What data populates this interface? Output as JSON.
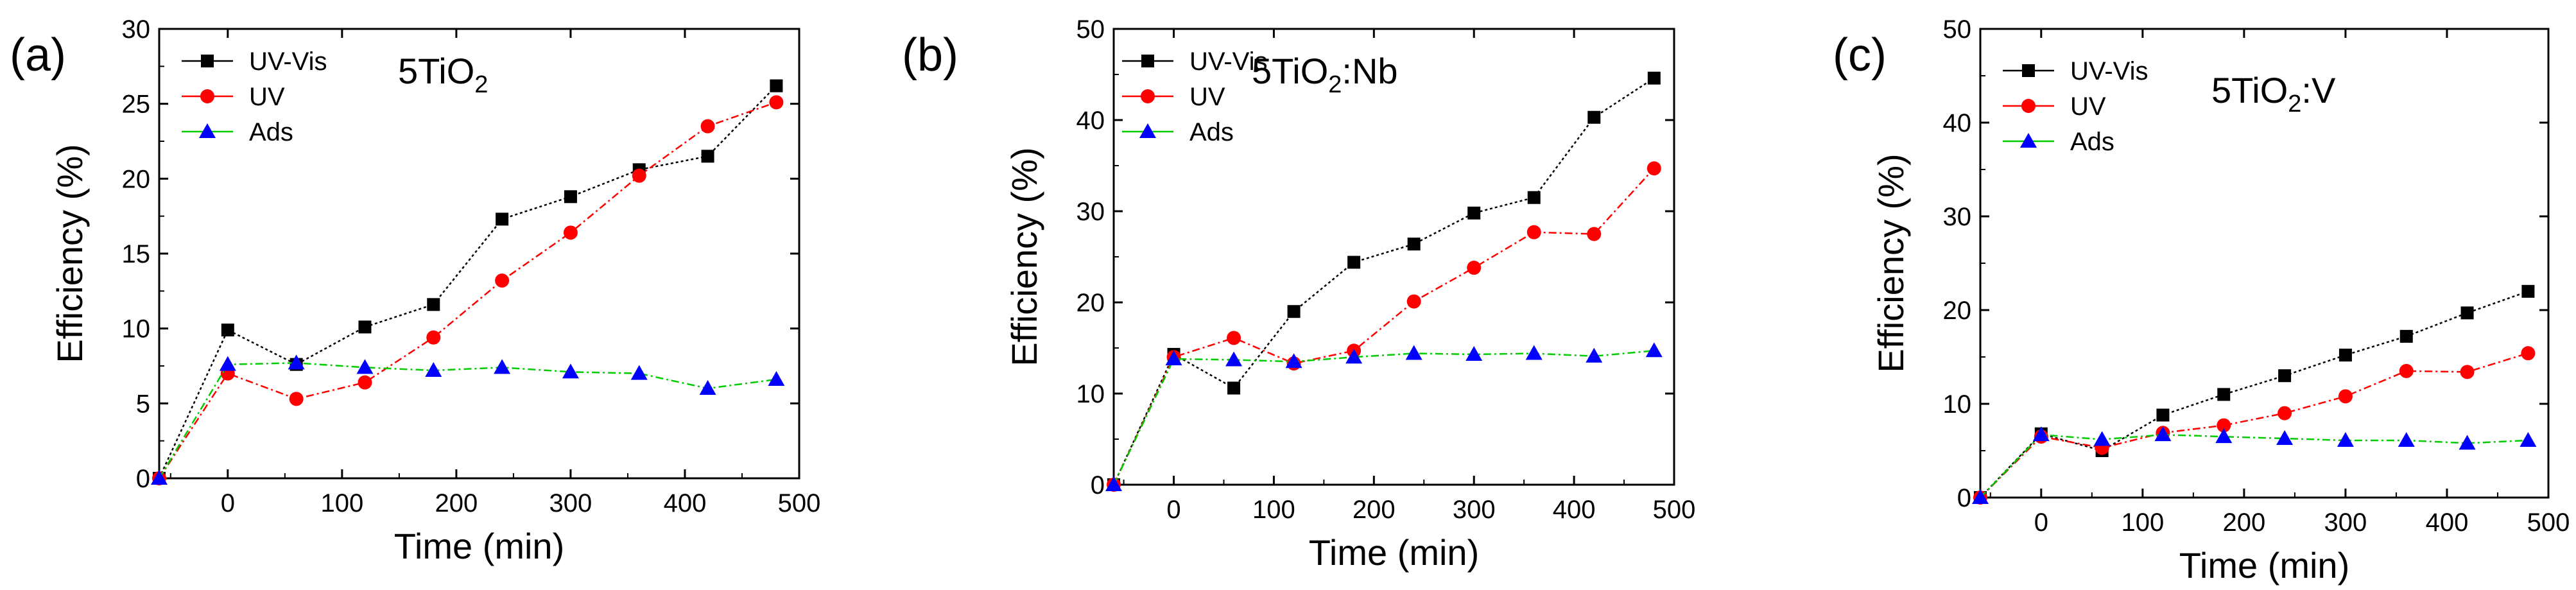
{
  "chart_data": [
    {
      "type": "line",
      "panel_label": "(a)",
      "title_parts": [
        "5TiO",
        "2",
        ""
      ],
      "xlabel": "Time (min)",
      "ylabel": "Efficiency (%)",
      "xlim": [
        -60,
        500
      ],
      "ylim": [
        0,
        30
      ],
      "xticks": [
        0,
        100,
        200,
        300,
        400,
        500
      ],
      "yticks": [
        0,
        5,
        10,
        15,
        20,
        25,
        30
      ],
      "legend": "top-left",
      "series": [
        {
          "name": "UV-Vis",
          "marker": "square",
          "color": "#000000",
          "line_color": "#000000",
          "x": [
            -60,
            0,
            60,
            120,
            180,
            240,
            300,
            360,
            420,
            480
          ],
          "y": [
            0,
            9.9,
            7.6,
            10.1,
            11.6,
            17.3,
            18.8,
            20.6,
            21.5,
            26.2
          ]
        },
        {
          "name": "UV",
          "marker": "circle",
          "color": "#ff0000",
          "line_color": "#ff0000",
          "x": [
            -60,
            0,
            60,
            120,
            180,
            240,
            300,
            360,
            420,
            480
          ],
          "y": [
            0,
            7.0,
            5.3,
            6.4,
            9.4,
            13.2,
            16.4,
            20.2,
            23.5,
            25.1
          ]
        },
        {
          "name": "Ads",
          "marker": "triangle",
          "color": "#0000ff",
          "line_color": "#00cc00",
          "x": [
            -60,
            0,
            60,
            120,
            180,
            240,
            300,
            360,
            420,
            480
          ],
          "y": [
            0,
            7.6,
            7.7,
            7.4,
            7.2,
            7.4,
            7.1,
            7.0,
            6.0,
            6.6
          ]
        }
      ]
    },
    {
      "type": "line",
      "panel_label": "(b)",
      "title_parts": [
        "5TiO",
        "2",
        ":Nb"
      ],
      "xlabel": "Time (min)",
      "ylabel": "Efficiency (%)",
      "xlim": [
        -60,
        500
      ],
      "ylim": [
        0,
        50
      ],
      "xticks": [
        0,
        100,
        200,
        300,
        400,
        500
      ],
      "yticks": [
        0,
        10,
        20,
        30,
        40,
        50
      ],
      "legend": "top-left",
      "series": [
        {
          "name": "UV-Vis",
          "marker": "square",
          "color": "#000000",
          "line_color": "#000000",
          "x": [
            -60,
            0,
            60,
            120,
            180,
            240,
            300,
            360,
            420,
            480
          ],
          "y": [
            0,
            14.3,
            10.6,
            19.0,
            24.4,
            26.4,
            29.8,
            31.5,
            40.3,
            44.6
          ]
        },
        {
          "name": "UV",
          "marker": "circle",
          "color": "#ff0000",
          "line_color": "#ff0000",
          "x": [
            -60,
            0,
            60,
            120,
            180,
            240,
            300,
            360,
            420,
            480
          ],
          "y": [
            0,
            14.0,
            16.1,
            13.3,
            14.7,
            20.1,
            23.8,
            27.7,
            27.5,
            34.7
          ]
        },
        {
          "name": "Ads",
          "marker": "triangle",
          "color": "#0000ff",
          "line_color": "#00cc00",
          "x": [
            -60,
            0,
            60,
            120,
            180,
            240,
            300,
            360,
            420,
            480
          ],
          "y": [
            0,
            13.8,
            13.7,
            13.5,
            14.0,
            14.4,
            14.3,
            14.4,
            14.1,
            14.7
          ]
        }
      ]
    },
    {
      "type": "line",
      "panel_label": "(c)",
      "title_parts": [
        "5TiO",
        "2",
        ":V"
      ],
      "xlabel": "Time (min)",
      "ylabel": "Efficiency (%)",
      "xlim": [
        -60,
        500
      ],
      "ylim": [
        0,
        50
      ],
      "xticks": [
        0,
        100,
        200,
        300,
        400,
        500
      ],
      "yticks": [
        0,
        10,
        20,
        30,
        40,
        50
      ],
      "legend": "top-left",
      "series": [
        {
          "name": "UV-Vis",
          "marker": "square",
          "color": "#000000",
          "line_color": "#000000",
          "x": [
            -60,
            0,
            60,
            120,
            180,
            240,
            300,
            360,
            420,
            480
          ],
          "y": [
            0,
            6.8,
            5.0,
            8.8,
            11.0,
            13.0,
            15.2,
            17.2,
            19.7,
            22.0
          ]
        },
        {
          "name": "UV",
          "marker": "circle",
          "color": "#ff0000",
          "line_color": "#ff0000",
          "x": [
            -60,
            0,
            60,
            120,
            180,
            240,
            300,
            360,
            420,
            480
          ],
          "y": [
            0,
            6.5,
            5.3,
            6.9,
            7.7,
            9.0,
            10.8,
            13.5,
            13.4,
            15.4
          ]
        },
        {
          "name": "Ads",
          "marker": "triangle",
          "color": "#0000ff",
          "line_color": "#00cc00",
          "x": [
            -60,
            0,
            60,
            120,
            180,
            240,
            300,
            360,
            420,
            480
          ],
          "y": [
            0,
            6.7,
            6.2,
            6.7,
            6.5,
            6.3,
            6.1,
            6.1,
            5.8,
            6.1
          ]
        }
      ]
    }
  ]
}
